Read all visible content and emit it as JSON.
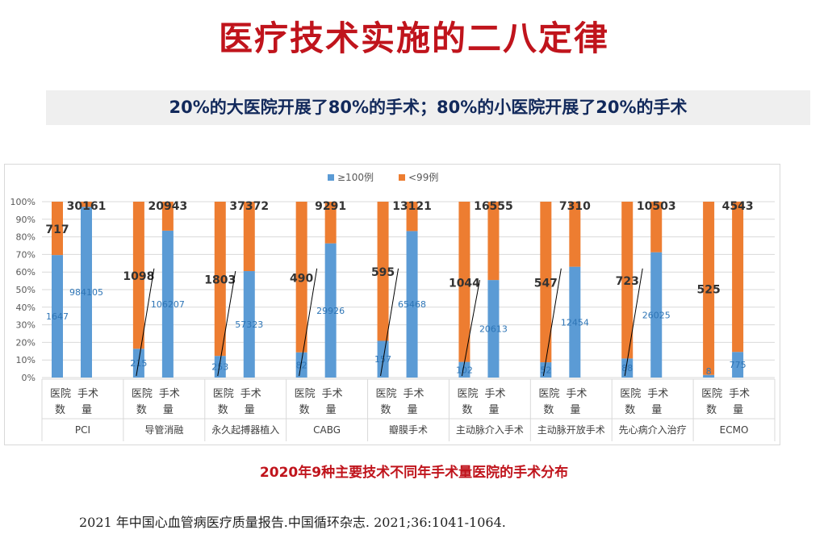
{
  "title": "医疗技术实施的二八定律",
  "subtitle": "20%的大医院开展了80%的手术；80%的小医院开展了20%的手术",
  "caption": "2020年9种主要技术不同年手术量医院的手术分布",
  "citation": "2021 年中国心血管病医疗质量报告.中国循环杂志. 2021;36:1041-1064.",
  "colors": {
    "blue": "#5b9bd5",
    "orange": "#ed7d31",
    "grid": "#d9d9d9"
  },
  "chart_data": {
    "type": "bar",
    "stacked": "percent",
    "ylim": [
      0,
      100
    ],
    "yticks": [
      "0%",
      "10%",
      "20%",
      "30%",
      "40%",
      "50%",
      "60%",
      "70%",
      "80%",
      "90%",
      "100%"
    ],
    "legend": [
      "≥100例",
      "<99例"
    ],
    "bar_labels": [
      "医院数",
      "手术量"
    ],
    "categories": [
      {
        "name": "PCI",
        "hospitals": [
          1647,
          717
        ],
        "surgeries": [
          984105,
          30161
        ]
      },
      {
        "name": "导管消融",
        "hospitals": [
          215,
          1098
        ],
        "surgeries": [
          106207,
          20943
        ]
      },
      {
        "name": "永久起搏器植入",
        "hospitals": [
          253,
          1803
        ],
        "surgeries": [
          57323,
          37372
        ]
      },
      {
        "name": "CABG",
        "hospitals": [
          82,
          490
        ],
        "surgeries": [
          29926,
          9291
        ]
      },
      {
        "name": "瓣膜手术",
        "hospitals": [
          157,
          595
        ],
        "surgeries": [
          65468,
          13121
        ]
      },
      {
        "name": "主动脉介入手术",
        "hospitals": [
          102,
          1044
        ],
        "surgeries": [
          20613,
          16555
        ]
      },
      {
        "name": "主动脉开放手术",
        "hospitals": [
          52,
          547
        ],
        "surgeries": [
          12454,
          7310
        ]
      },
      {
        "name": "先心病介入治疗",
        "hospitals": [
          88,
          723
        ],
        "surgeries": [
          26025,
          10503
        ]
      },
      {
        "name": "ECMO",
        "hospitals": [
          8,
          525
        ],
        "surgeries": [
          775,
          4543
        ]
      }
    ]
  }
}
